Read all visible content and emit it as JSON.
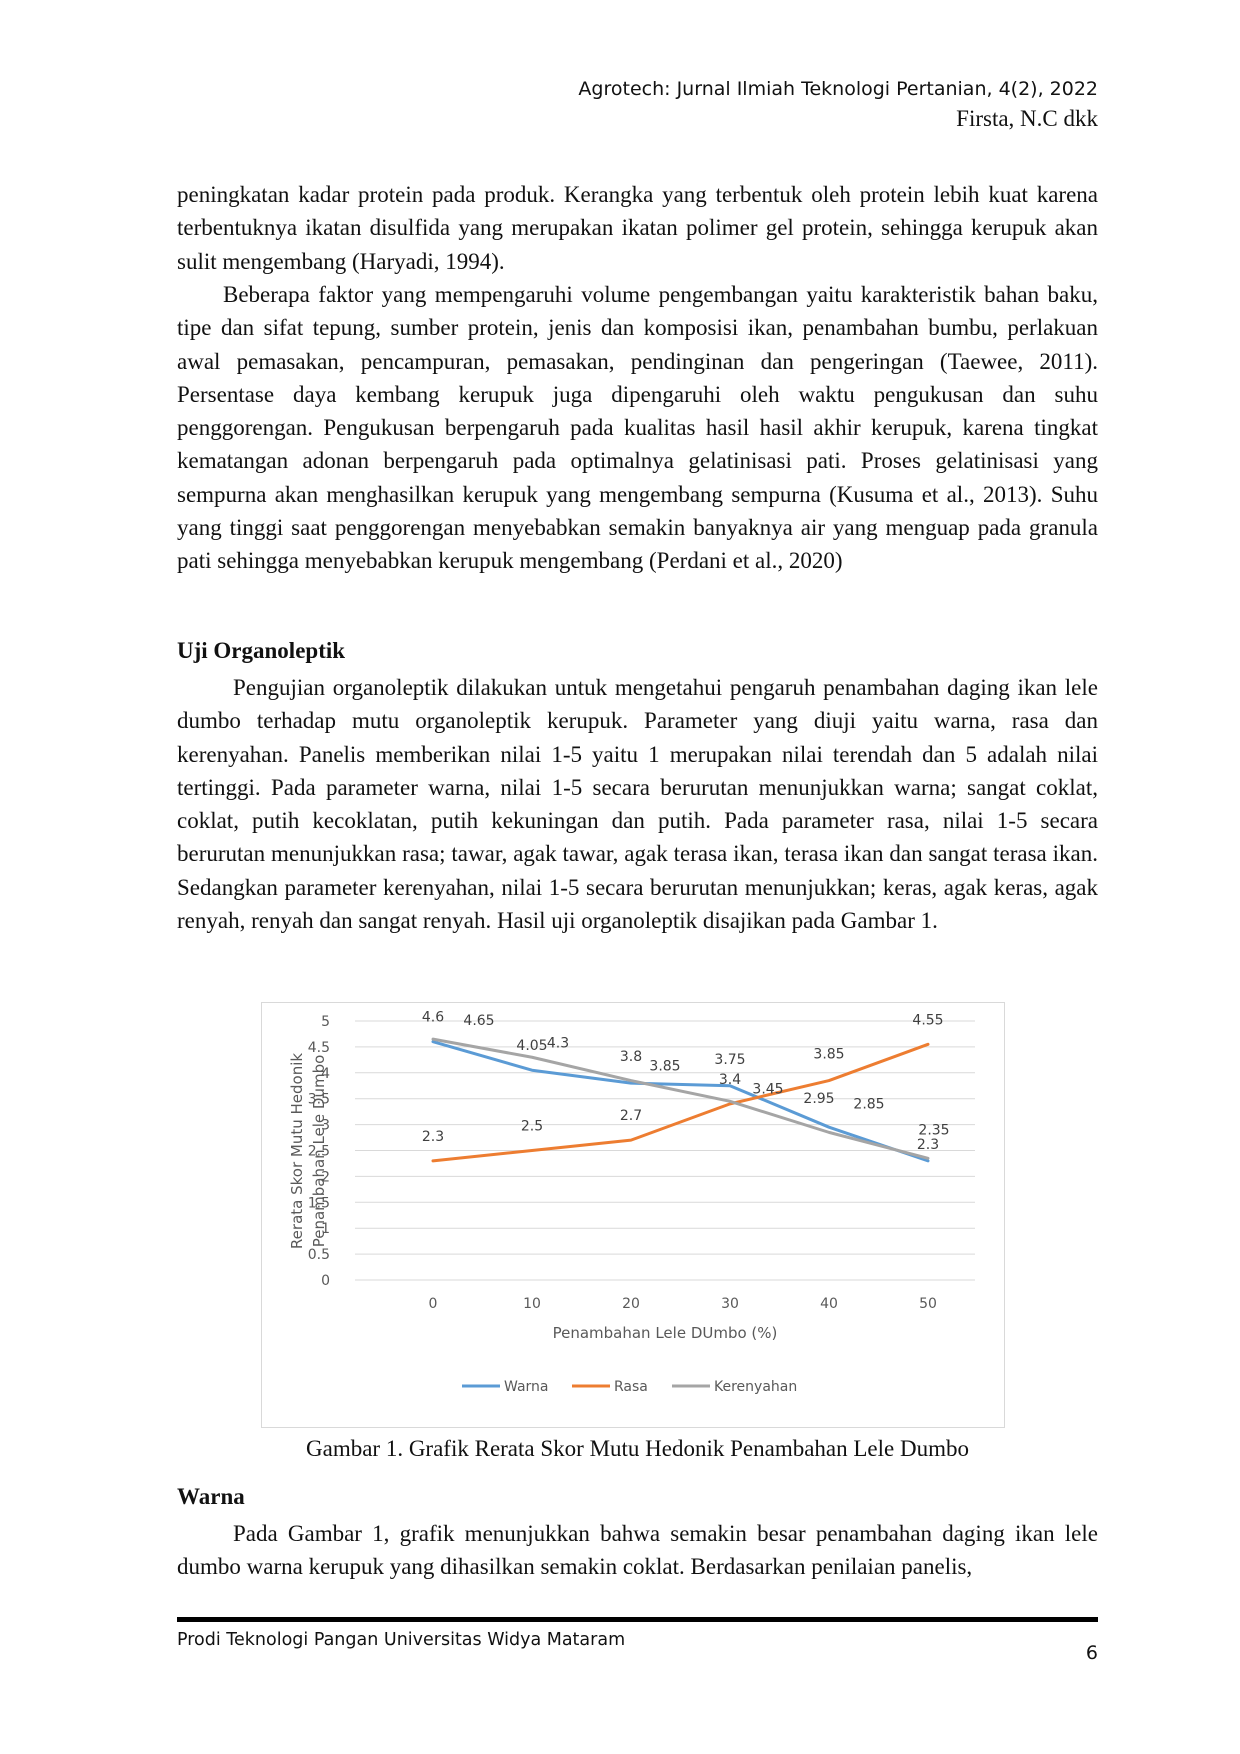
{
  "header": {
    "journal": "Agrotech: Jurnal Ilmiah Teknologi Pertanian, 4(2), 2022",
    "author": "Firsta, N.C dkk"
  },
  "paragraphs": {
    "p1": "peningkatan kadar protein pada produk. Kerangka yang terbentuk oleh protein lebih kuat karena terbentuknya ikatan disulfida yang merupakan ikatan polimer gel protein, sehingga kerupuk akan sulit mengembang (Haryadi, 1994).",
    "p2": "Beberapa faktor yang mempengaruhi volume pengembangan yaitu karakteristik bahan baku, tipe dan sifat tepung, sumber protein, jenis dan komposisi ikan, penambahan bumbu, perlakuan awal pemasakan, pencampuran, pemasakan, pendinginan dan pengeringan (Taewee, 2011). Persentase daya kembang kerupuk juga dipengaruhi oleh waktu pengukusan dan suhu penggorengan. Pengukusan berpengaruh pada kualitas hasil hasil akhir kerupuk, karena tingkat kematangan adonan berpengaruh pada optimalnya gelatinisasi pati. Proses gelatinisasi yang sempurna akan menghasilkan kerupuk yang mengembang sempurna (Kusuma et al., 2013). Suhu yang tinggi saat penggorengan menyebabkan semakin banyaknya air yang menguap pada granula pati sehingga menyebabkan kerupuk mengembang (Perdani et al., 2020)",
    "p3": "Pengujian organoleptik dilakukan untuk mengetahui pengaruh penambahan daging ikan lele dumbo terhadap mutu organoleptik kerupuk. Parameter yang diuji yaitu warna, rasa dan kerenyahan. Panelis memberikan nilai 1-5 yaitu 1 merupakan nilai terendah dan 5 adalah nilai tertinggi. Pada parameter warna, nilai 1-5 secara berurutan menunjukkan warna; sangat coklat, coklat, putih kecoklatan, putih kekuningan dan putih. Pada parameter rasa, nilai 1-5 secara berurutan menunjukkan rasa; tawar, agak tawar, agak terasa ikan, terasa ikan dan sangat terasa ikan. Sedangkan parameter kerenyahan, nilai 1-5 secara berurutan menunjukkan; keras, agak keras, agak renyah, renyah dan sangat renyah. Hasil uji organoleptik disajikan pada Gambar 1.",
    "p4": "Pada Gambar 1, grafik menunjukkan bahwa semakin besar penambahan daging ikan lele dumbo warna kerupuk yang dihasilkan semakin coklat. Berdasarkan penilaian panelis,"
  },
  "headings": {
    "uji": "Uji Organoleptik",
    "warna": "Warna"
  },
  "caption": "Gambar 1. Grafik Rerata Skor Mutu Hedonik Penambahan Lele Dumbo",
  "footer": {
    "left": "Prodi Teknologi Pangan Universitas Widya Mataram",
    "page": "6"
  },
  "chart_data": {
    "type": "line",
    "title": "",
    "xlabel": "Penambahan Lele DUmbo (%)",
    "ylabel_lines": [
      "Rerata Skor Mutu  Hedonik",
      "Penambahan Lele Dumbo"
    ],
    "x": [
      0,
      10,
      20,
      30,
      40,
      50
    ],
    "ylim": [
      0,
      5
    ],
    "yticks": [
      "0",
      "0.5",
      "1",
      "1.5",
      "2",
      "2.5",
      "3",
      "3.5",
      "4",
      "4.5",
      "5"
    ],
    "grid": true,
    "legend": "bottom",
    "series": [
      {
        "name": "Warna",
        "color": "#5b9bd5",
        "values": [
          4.6,
          4.05,
          3.8,
          3.75,
          2.95,
          2.3
        ]
      },
      {
        "name": "Rasa",
        "color": "#ed7d31",
        "values": [
          2.3,
          2.5,
          2.7,
          3.4,
          3.85,
          4.55
        ]
      },
      {
        "name": "Kerenyahan",
        "color": "#a5a5a5",
        "values": [
          4.65,
          4.3,
          3.85,
          3.45,
          2.85,
          2.35
        ]
      }
    ]
  }
}
